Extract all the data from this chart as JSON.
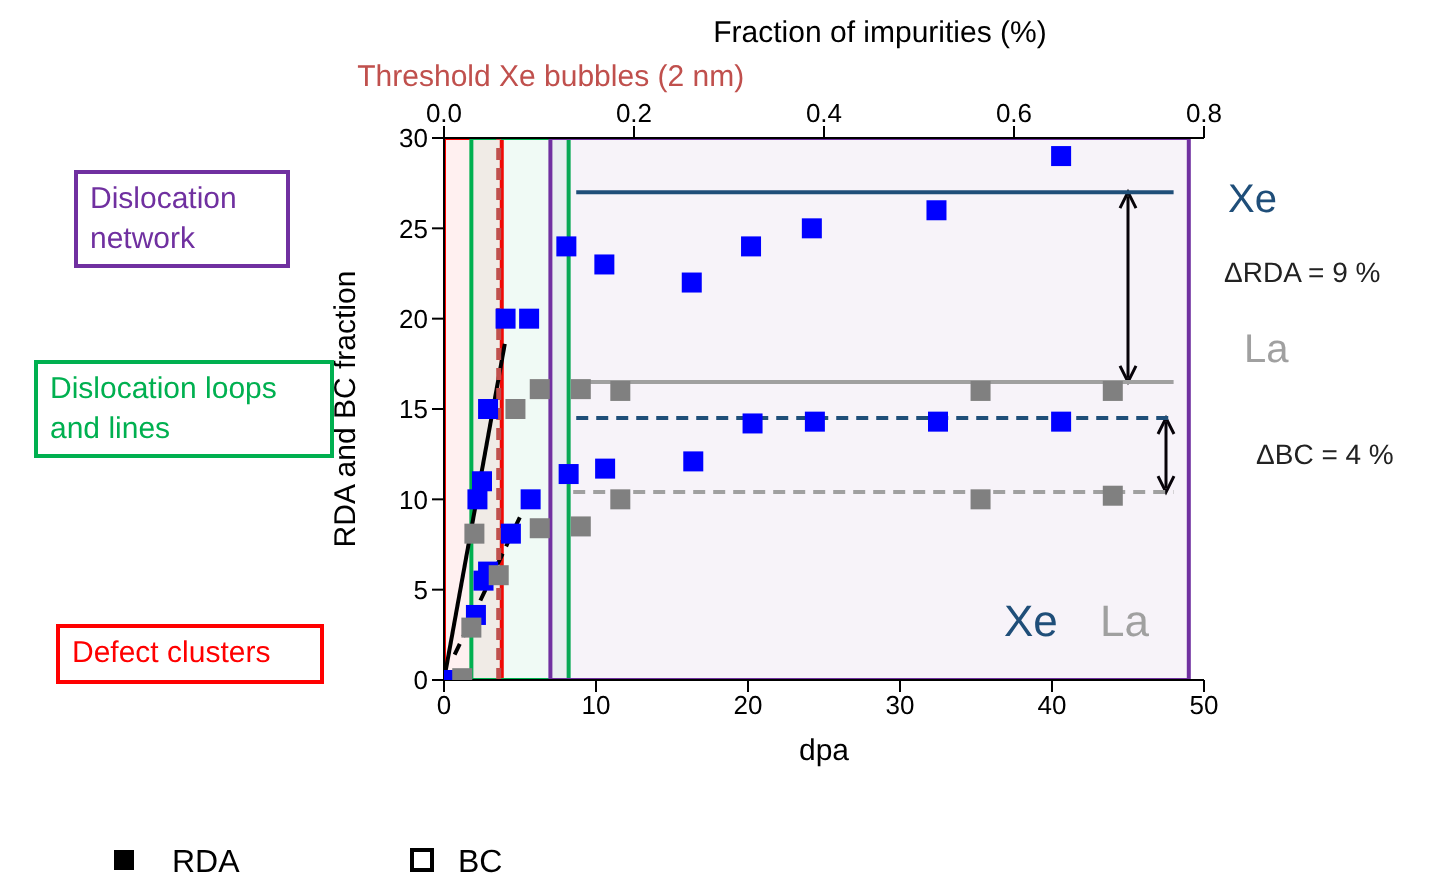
{
  "chart_data": {
    "type": "scatter",
    "xlabel": "dpa",
    "ylabel": "RDA and BC fraction",
    "x2label": "Fraction of impurities (%)",
    "xlim": [
      0,
      50
    ],
    "xticks": [
      0,
      10,
      20,
      30,
      40,
      50
    ],
    "ylim": [
      0,
      30
    ],
    "yticks": [
      0,
      5,
      10,
      15,
      20,
      25,
      30
    ],
    "x2lim": [
      0,
      0.8
    ],
    "x2ticks": [
      {
        "value": 0,
        "label": "0.0"
      },
      0.2,
      0.4,
      0.6,
      {
        "value": 0.8,
        "label": "0.8"
      }
    ],
    "series": [
      {
        "color": "#0000ff",
        "marker": "square",
        "x": [
          0,
          2.2,
          2.5,
          2.9,
          4.05,
          5.6,
          8.05,
          10.55,
          16.3,
          20.2,
          24.2,
          32.4,
          40.6
        ],
        "values": [
          0,
          10,
          11,
          15,
          20,
          20,
          24,
          23,
          22,
          24,
          25,
          26,
          29
        ]
      },
      {
        "color": "#0000ff",
        "marker": "square",
        "x": [
          2.1,
          2.6,
          2.9,
          4.4,
          5.7,
          8.2,
          10.6,
          16.4,
          20.3,
          24.4,
          32.5,
          40.6
        ],
        "values": [
          3.6,
          5.5,
          6,
          8.1,
          10,
          11.4,
          11.7,
          12.1,
          14.2,
          14.3,
          14.3,
          14.3
        ]
      },
      {
        "color": "#808080",
        "marker": "square",
        "x": [
          2,
          4.7,
          6.3,
          9,
          11.6,
          35.3,
          44
        ],
        "values": [
          8.1,
          15,
          16.1,
          16.1,
          16,
          16,
          16
        ]
      },
      {
        "color": "#808080",
        "marker": "square",
        "x": [
          1.2,
          1.8,
          3.6,
          6.3,
          9,
          11.6,
          35.3,
          44
        ],
        "values": [
          0.1,
          2.9,
          5.8,
          8.4,
          8.5,
          10,
          10,
          10.2
        ]
      },
      {
        "type": "line",
        "color": "#1f4e79",
        "line_style": "solid",
        "x": [
          8.7,
          48
        ],
        "values": [
          27,
          27
        ]
      },
      {
        "type": "line",
        "color": "#a0a0a0",
        "line_style": "solid",
        "x": [
          8.5,
          48
        ],
        "values": [
          16.5,
          16.5
        ]
      },
      {
        "type": "line",
        "color": "#1f4e79",
        "line_style": "dashed",
        "x": [
          8.7,
          48
        ],
        "values": [
          14.5,
          14.5
        ]
      },
      {
        "type": "line",
        "color": "#a0a0a0",
        "line_style": "dashed",
        "x": [
          8.5,
          48
        ],
        "values": [
          10.4,
          10.4
        ]
      },
      {
        "type": "line",
        "color": "#000000",
        "line_style": "solid",
        "x": [
          0,
          4
        ],
        "values": [
          0,
          18.6
        ]
      },
      {
        "type": "line",
        "color": "#000000",
        "line_style": "dashed",
        "x": [
          0.7,
          5.1
        ],
        "values": [
          1.4,
          9.2
        ]
      }
    ],
    "ref_lines": [
      {
        "axis": "x",
        "value": 3.6,
        "label": "Threshold Xe bubbles (2 nm)",
        "color": "#c0504d",
        "line_style": "dashed"
      }
    ],
    "bands": [
      {
        "axis": "x",
        "from": 0,
        "to": 3.8,
        "label": "Defect clusters",
        "color": "#ff0000"
      },
      {
        "axis": "x",
        "from": 1.8,
        "to": 8.2,
        "label": "Dislocation loops and lines",
        "color": "#00b050"
      },
      {
        "axis": "x",
        "from": 7,
        "to": 49,
        "label": "Dislocation network",
        "color": "#7030a0"
      }
    ],
    "annotations": [
      "Xe",
      "ΔRDA = 9 %",
      "La",
      "ΔBC = 4 %",
      "Xe",
      "La",
      "RDA",
      "BC"
    ]
  }
}
